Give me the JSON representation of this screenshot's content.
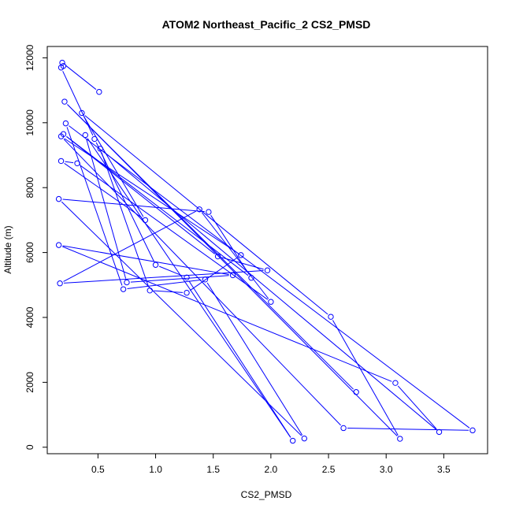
{
  "chart_data": {
    "type": "line",
    "title": "ATOM2 Northeast_Pacific_2 CS2_PMSD",
    "xlabel": "CS2_PMSD",
    "ylabel": "Altitude (m)",
    "xlim": [
      0.06,
      3.88
    ],
    "ylim": [
      -200,
      12350
    ],
    "x_ticks": [
      0.5,
      1.0,
      1.5,
      2.0,
      2.5,
      3.0,
      3.5
    ],
    "x_tick_labels": [
      "0.5",
      "1.0",
      "1.5",
      "2.0",
      "2.5",
      "3.0",
      "3.5"
    ],
    "y_ticks": [
      0,
      2000,
      4000,
      6000,
      8000,
      10000,
      12000
    ],
    "y_tick_labels": [
      "0",
      "2000",
      "4000",
      "6000",
      "8000",
      "10000",
      "12000"
    ],
    "series_color": "#0000ff",
    "x": [
      0.51,
      0.19,
      0.2,
      0.18,
      0.47,
      1.0,
      1.27,
      2.19,
      0.39,
      0.75,
      1.67,
      0.16,
      3.08,
      3.46,
      0.52,
      0.95,
      1.27,
      1.74,
      0.18,
      2.63,
      3.75,
      0.22,
      0.72,
      1.43,
      2.29,
      0.16,
      1.46,
      1.83,
      0.2,
      1.54,
      1.97,
      0.17,
      1.38,
      2.0,
      0.32,
      0.18,
      0.91,
      0.36,
      2.52,
      3.12,
      0.21,
      2.74
    ],
    "y": [
      10950,
      11850,
      11750,
      11700,
      9500,
      5620,
      5230,
      200,
      9620,
      5080,
      5300,
      6230,
      1980,
      470,
      9200,
      4830,
      4760,
      5920,
      9580,
      590,
      520,
      9980,
      4870,
      5170,
      270,
      7650,
      7250,
      5220,
      9650,
      5880,
      5450,
      5050,
      7330,
      4480,
      8750,
      8820,
      7000,
      10300,
      4020,
      260,
      10650,
      1700
    ]
  }
}
